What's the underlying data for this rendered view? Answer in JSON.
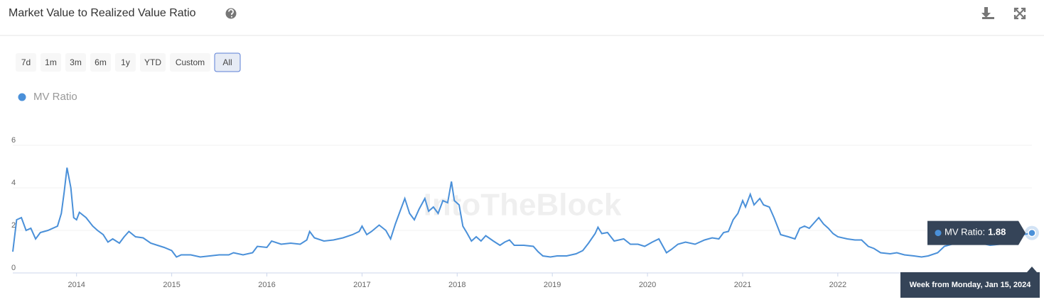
{
  "header": {
    "title": "Market Value to Realized Value Ratio"
  },
  "range_buttons": [
    "7d",
    "1m",
    "3m",
    "6m",
    "1y",
    "YTD",
    "Custom",
    "All"
  ],
  "selected": "All",
  "watermark": "IntoTheBlock",
  "chart_data": {
    "type": "line",
    "x": [
      2013.33,
      2013.37,
      2013.42,
      2013.47,
      2013.52,
      2013.57,
      2013.62,
      2013.7,
      2013.8,
      2013.84,
      2013.87,
      2013.9,
      2013.94,
      2013.97,
      2014.0,
      2014.03,
      2014.1,
      2014.17,
      2014.22,
      2014.28,
      2014.33,
      2014.38,
      2014.45,
      2014.5,
      2014.55,
      2014.62,
      2014.7,
      2014.78,
      2014.85,
      2014.92,
      2015.0,
      2015.05,
      2015.1,
      2015.2,
      2015.3,
      2015.4,
      2015.5,
      2015.6,
      2015.65,
      2015.75,
      2015.85,
      2015.9,
      2016.0,
      2016.05,
      2016.15,
      2016.25,
      2016.35,
      2016.42,
      2016.45,
      2016.5,
      2016.6,
      2016.7,
      2016.8,
      2016.9,
      2016.97,
      2017.0,
      2017.05,
      2017.1,
      2017.18,
      2017.25,
      2017.3,
      2017.35,
      2017.4,
      2017.45,
      2017.5,
      2017.55,
      2017.6,
      2017.66,
      2017.7,
      2017.75,
      2017.8,
      2017.85,
      2017.9,
      2017.94,
      2017.97,
      2018.02,
      2018.06,
      2018.1,
      2018.15,
      2018.2,
      2018.25,
      2018.3,
      2018.38,
      2018.45,
      2018.5,
      2018.55,
      2018.6,
      2018.7,
      2018.8,
      2018.85,
      2018.9,
      2018.98,
      2019.05,
      2019.15,
      2019.25,
      2019.32,
      2019.38,
      2019.45,
      2019.48,
      2019.52,
      2019.58,
      2019.65,
      2019.75,
      2019.82,
      2019.9,
      2019.97,
      2020.05,
      2020.12,
      2020.2,
      2020.25,
      2020.32,
      2020.4,
      2020.5,
      2020.6,
      2020.68,
      2020.75,
      2020.8,
      2020.85,
      2020.9,
      2020.95,
      2021.0,
      2021.03,
      2021.08,
      2021.12,
      2021.18,
      2021.22,
      2021.28,
      2021.33,
      2021.4,
      2021.48,
      2021.55,
      2021.6,
      2021.65,
      2021.7,
      2021.75,
      2021.8,
      2021.85,
      2021.9,
      2021.95,
      2022.0,
      2022.1,
      2022.18,
      2022.25,
      2022.32,
      2022.38,
      2022.45,
      2022.55,
      2022.62,
      2022.7,
      2022.8,
      2022.88,
      2022.95,
      2023.05,
      2023.12,
      2023.2,
      2023.28,
      2023.4,
      2023.5,
      2023.6,
      2023.7,
      2023.8,
      2023.88,
      2023.95,
      2024.04
    ],
    "series": [
      {
        "name": "MV Ratio",
        "color": "#4a90d9",
        "values": [
          1.0,
          2.5,
          2.6,
          2.0,
          2.1,
          1.6,
          1.9,
          2.0,
          2.2,
          2.8,
          3.8,
          4.95,
          4.0,
          2.6,
          2.5,
          2.85,
          2.6,
          2.2,
          2.0,
          1.8,
          1.45,
          1.6,
          1.4,
          1.7,
          1.95,
          1.7,
          1.65,
          1.4,
          1.3,
          1.2,
          1.05,
          0.75,
          0.85,
          0.85,
          0.75,
          0.8,
          0.85,
          0.85,
          0.95,
          0.85,
          0.95,
          1.25,
          1.2,
          1.5,
          1.35,
          1.4,
          1.35,
          1.55,
          1.95,
          1.65,
          1.5,
          1.55,
          1.65,
          1.8,
          1.95,
          2.2,
          1.8,
          1.95,
          2.25,
          2.0,
          1.6,
          2.3,
          2.9,
          3.5,
          2.8,
          2.5,
          3.0,
          3.5,
          2.9,
          3.1,
          2.8,
          3.4,
          3.3,
          4.3,
          3.4,
          3.2,
          2.2,
          1.9,
          1.5,
          1.7,
          1.5,
          1.75,
          1.5,
          1.3,
          1.45,
          1.55,
          1.3,
          1.3,
          1.25,
          1.0,
          0.8,
          0.75,
          0.8,
          0.8,
          0.9,
          1.05,
          1.4,
          1.85,
          2.15,
          1.85,
          1.9,
          1.5,
          1.6,
          1.35,
          1.35,
          1.25,
          1.45,
          1.6,
          0.95,
          1.1,
          1.35,
          1.45,
          1.35,
          1.55,
          1.65,
          1.6,
          1.9,
          1.95,
          2.5,
          2.8,
          3.4,
          3.1,
          3.7,
          3.2,
          3.5,
          3.2,
          3.1,
          2.6,
          1.8,
          1.7,
          1.6,
          2.1,
          2.2,
          2.1,
          2.35,
          2.6,
          2.3,
          2.1,
          1.85,
          1.7,
          1.6,
          1.55,
          1.55,
          1.25,
          1.15,
          0.95,
          0.9,
          0.95,
          0.85,
          0.8,
          0.75,
          0.8,
          0.95,
          1.25,
          1.35,
          1.45,
          1.35,
          1.4,
          1.3,
          1.35,
          1.55,
          1.7,
          1.8,
          1.88
        ]
      }
    ],
    "xlim": [
      2013.33,
      2024.04
    ],
    "xticks": [
      2014,
      2015,
      2016,
      2017,
      2018,
      2019,
      2020,
      2021,
      2022
    ],
    "ylim": [
      0,
      6
    ],
    "yticks": [
      0,
      2,
      4,
      6
    ],
    "grid": true,
    "tooltip": {
      "label": "MV Ratio:",
      "date": "Week from Monday, Jan 15, 2024"
    }
  }
}
